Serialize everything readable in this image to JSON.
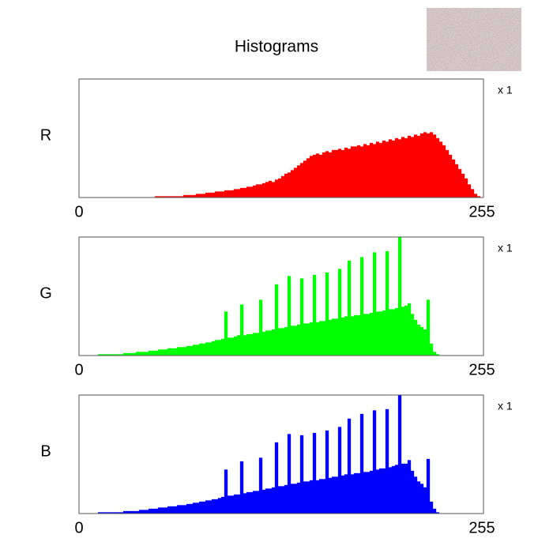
{
  "title": "Histograms",
  "chart_data": [
    {
      "type": "histogram",
      "label": "R",
      "scale_label": "x 1",
      "color": "#ff0000",
      "xlim": [
        0,
        256
      ],
      "ylim": [
        0,
        100
      ],
      "xticks": [
        0,
        255
      ],
      "bins": [
        0,
        2,
        4,
        6,
        8,
        10,
        12,
        14,
        16,
        18,
        20,
        22,
        24,
        26,
        28,
        30,
        32,
        34,
        36,
        38,
        40,
        42,
        44,
        46,
        48,
        50,
        52,
        54,
        56,
        58,
        60,
        62,
        64,
        66,
        68,
        70,
        72,
        74,
        76,
        78,
        80,
        82,
        84,
        86,
        88,
        90,
        92,
        94,
        96,
        98,
        100,
        102,
        104,
        106,
        108,
        110,
        112,
        114,
        116,
        118,
        120,
        122,
        124,
        126,
        128,
        130,
        132,
        134,
        136,
        138,
        140,
        142,
        144,
        146,
        148,
        150,
        152,
        154,
        156,
        158,
        160,
        162,
        164,
        166,
        168,
        170,
        172,
        174,
        176,
        178,
        180,
        182,
        184,
        186,
        188,
        190,
        192,
        194,
        196,
        198,
        200,
        202,
        204,
        206,
        208,
        210,
        212,
        214,
        216,
        218,
        220,
        222,
        224,
        226,
        228,
        230,
        232,
        234,
        236,
        238,
        240,
        242,
        244,
        246,
        248,
        250,
        252,
        254,
        256
      ],
      "values": [
        0,
        0,
        0,
        0,
        0,
        0,
        0,
        0,
        0,
        0,
        0,
        0,
        0,
        0,
        0,
        0,
        0,
        0,
        0,
        0,
        0,
        0,
        0,
        0,
        1,
        1,
        1,
        1,
        1,
        1,
        1,
        1,
        1,
        2,
        2,
        2,
        2,
        3,
        3,
        3,
        4,
        4,
        4,
        5,
        5,
        5,
        6,
        6,
        6,
        7,
        7,
        8,
        8,
        9,
        9,
        10,
        11,
        11,
        12,
        13,
        14,
        13,
        15,
        16,
        18,
        20,
        21,
        23,
        25,
        27,
        29,
        31,
        33,
        35,
        36,
        37,
        36,
        38,
        39,
        38,
        40,
        40,
        41,
        40,
        42,
        41,
        43,
        43,
        44,
        43,
        45,
        44,
        46,
        45,
        47,
        46,
        48,
        47,
        49,
        48,
        50,
        49,
        51,
        50,
        52,
        51,
        53,
        52,
        54,
        55,
        54,
        55,
        53,
        50,
        47,
        44,
        40,
        36,
        32,
        28,
        24,
        20,
        16,
        11,
        7,
        3,
        1,
        0
      ]
    },
    {
      "type": "histogram",
      "label": "G",
      "scale_label": "x 1",
      "color": "#00ff00",
      "xlim": [
        0,
        256
      ],
      "ylim": [
        0,
        100
      ],
      "xticks": [
        0,
        255
      ],
      "bins": [
        0,
        2,
        4,
        6,
        8,
        10,
        12,
        14,
        16,
        18,
        20,
        22,
        24,
        26,
        28,
        30,
        32,
        34,
        36,
        38,
        40,
        42,
        44,
        46,
        48,
        50,
        52,
        54,
        56,
        58,
        60,
        62,
        64,
        66,
        68,
        70,
        72,
        74,
        76,
        78,
        80,
        82,
        84,
        86,
        88,
        90,
        92,
        94,
        96,
        98,
        100,
        102,
        104,
        106,
        108,
        110,
        112,
        114,
        116,
        118,
        120,
        122,
        124,
        126,
        128,
        130,
        132,
        134,
        136,
        138,
        140,
        142,
        144,
        146,
        148,
        150,
        152,
        154,
        156,
        158,
        160,
        162,
        164,
        166,
        168,
        170,
        172,
        174,
        176,
        178,
        180,
        182,
        184,
        186,
        188,
        190,
        192,
        194,
        196,
        198,
        200,
        202,
        204,
        206,
        208,
        210,
        212,
        214,
        216,
        218,
        220,
        222,
        224,
        226,
        228,
        230,
        232,
        234,
        236,
        238,
        240,
        242,
        244,
        246,
        248,
        250,
        252,
        254,
        256
      ],
      "values": [
        0,
        0,
        0,
        0,
        0,
        0,
        1,
        1,
        1,
        1,
        1,
        1,
        1,
        1,
        2,
        2,
        2,
        2,
        3,
        3,
        3,
        3,
        4,
        4,
        4,
        5,
        5,
        5,
        6,
        6,
        6,
        7,
        7,
        7,
        8,
        8,
        9,
        9,
        10,
        10,
        11,
        11,
        12,
        13,
        13,
        14,
        37,
        15,
        15,
        16,
        17,
        43,
        17,
        18,
        18,
        19,
        19,
        47,
        20,
        21,
        21,
        22,
        60,
        23,
        23,
        24,
        67,
        25,
        25,
        26,
        65,
        27,
        27,
        28,
        68,
        28,
        29,
        29,
        70,
        30,
        31,
        31,
        73,
        32,
        33,
        80,
        33,
        34,
        34,
        83,
        35,
        35,
        36,
        87,
        37,
        37,
        38,
        88,
        39,
        39,
        40,
        100,
        41,
        42,
        44,
        35,
        30,
        26,
        24,
        22,
        47,
        10,
        3,
        1,
        0,
        0,
        0,
        0,
        0,
        0,
        0,
        0,
        0,
        0,
        0,
        0,
        0,
        0
      ]
    },
    {
      "type": "histogram",
      "label": "B",
      "scale_label": "x 1",
      "color": "#0000ff",
      "xlim": [
        0,
        256
      ],
      "ylim": [
        0,
        100
      ],
      "xticks": [
        0,
        255
      ],
      "bins": [
        0,
        2,
        4,
        6,
        8,
        10,
        12,
        14,
        16,
        18,
        20,
        22,
        24,
        26,
        28,
        30,
        32,
        34,
        36,
        38,
        40,
        42,
        44,
        46,
        48,
        50,
        52,
        54,
        56,
        58,
        60,
        62,
        64,
        66,
        68,
        70,
        72,
        74,
        76,
        78,
        80,
        82,
        84,
        86,
        88,
        90,
        92,
        94,
        96,
        98,
        100,
        102,
        104,
        106,
        108,
        110,
        112,
        114,
        116,
        118,
        120,
        122,
        124,
        126,
        128,
        130,
        132,
        134,
        136,
        138,
        140,
        142,
        144,
        146,
        148,
        150,
        152,
        154,
        156,
        158,
        160,
        162,
        164,
        166,
        168,
        170,
        172,
        174,
        176,
        178,
        180,
        182,
        184,
        186,
        188,
        190,
        192,
        194,
        196,
        198,
        200,
        202,
        204,
        206,
        208,
        210,
        212,
        214,
        216,
        218,
        220,
        222,
        224,
        226,
        228,
        230,
        232,
        234,
        236,
        238,
        240,
        242,
        244,
        246,
        248,
        250,
        252,
        254,
        256
      ],
      "values": [
        0,
        0,
        0,
        0,
        0,
        0,
        1,
        1,
        1,
        1,
        1,
        1,
        1,
        1,
        2,
        2,
        2,
        2,
        2,
        3,
        3,
        3,
        4,
        4,
        4,
        5,
        5,
        5,
        6,
        6,
        6,
        7,
        7,
        7,
        8,
        8,
        9,
        9,
        10,
        10,
        11,
        11,
        12,
        12,
        13,
        14,
        37,
        15,
        15,
        16,
        16,
        44,
        17,
        18,
        18,
        19,
        19,
        47,
        20,
        21,
        21,
        22,
        60,
        23,
        23,
        24,
        67,
        25,
        25,
        26,
        66,
        27,
        27,
        28,
        68,
        28,
        29,
        29,
        70,
        30,
        31,
        31,
        73,
        32,
        33,
        80,
        33,
        34,
        34,
        84,
        35,
        35,
        36,
        87,
        37,
        38,
        38,
        88,
        39,
        40,
        41,
        100,
        42,
        42,
        45,
        36,
        31,
        27,
        25,
        22,
        46,
        10,
        4,
        1,
        0,
        0,
        0,
        0,
        0,
        0,
        0,
        0,
        0,
        0,
        0,
        0,
        0,
        0
      ]
    }
  ]
}
